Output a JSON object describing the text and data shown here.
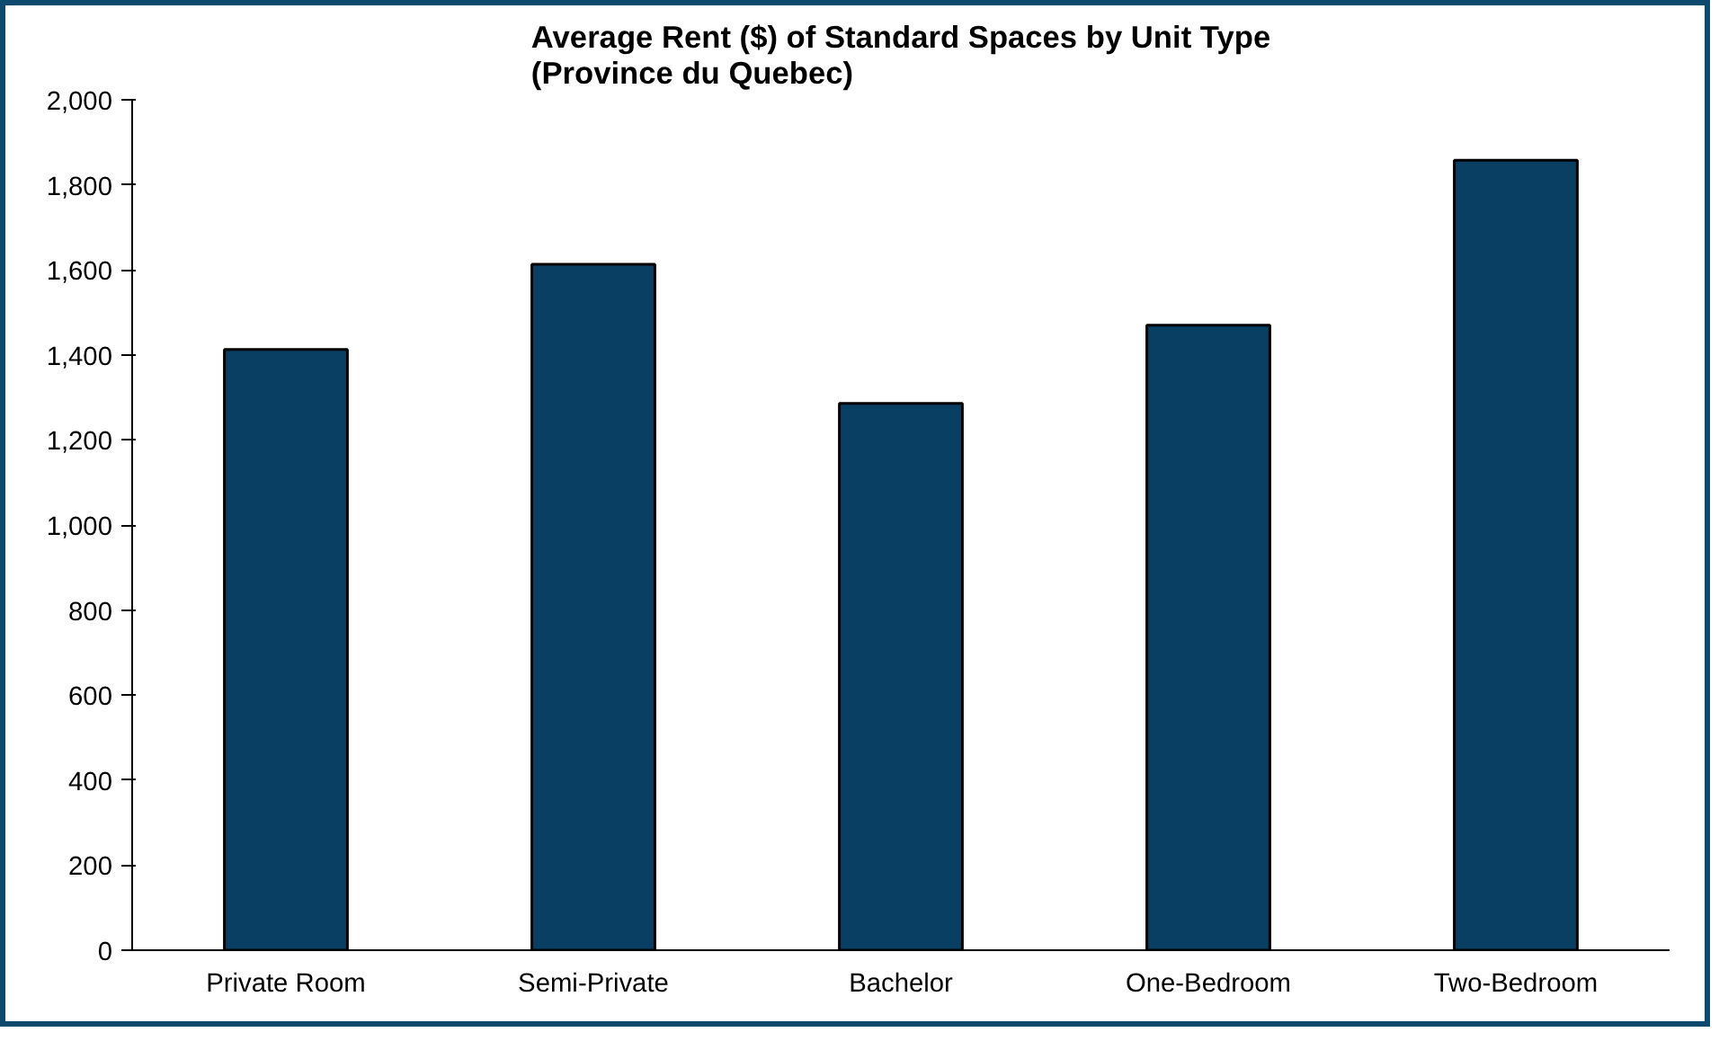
{
  "chart_data": {
    "type": "bar",
    "title": "Average Rent ($) of Standard Spaces by Unit Type\n(Province du Quebec)",
    "categories": [
      "Private Room",
      "Semi-Private",
      "Bachelor",
      "One-Bedroom",
      "Two-Bedroom"
    ],
    "values": [
      1413,
      1613,
      1286,
      1470,
      1858
    ],
    "color": "#083f63",
    "ylim": [
      0,
      2000
    ],
    "yticks": [
      0,
      200,
      400,
      600,
      800,
      {
        "value": 1000,
        "label": "1,000"
      },
      {
        "value": 1200,
        "label": "1,200"
      },
      {
        "value": 1400,
        "label": "1,400"
      },
      {
        "value": 1600,
        "label": "1,600"
      },
      {
        "value": 1800,
        "label": "1,800"
      },
      {
        "value": 2000,
        "label": "2,000"
      }
    ],
    "grid": false
  }
}
